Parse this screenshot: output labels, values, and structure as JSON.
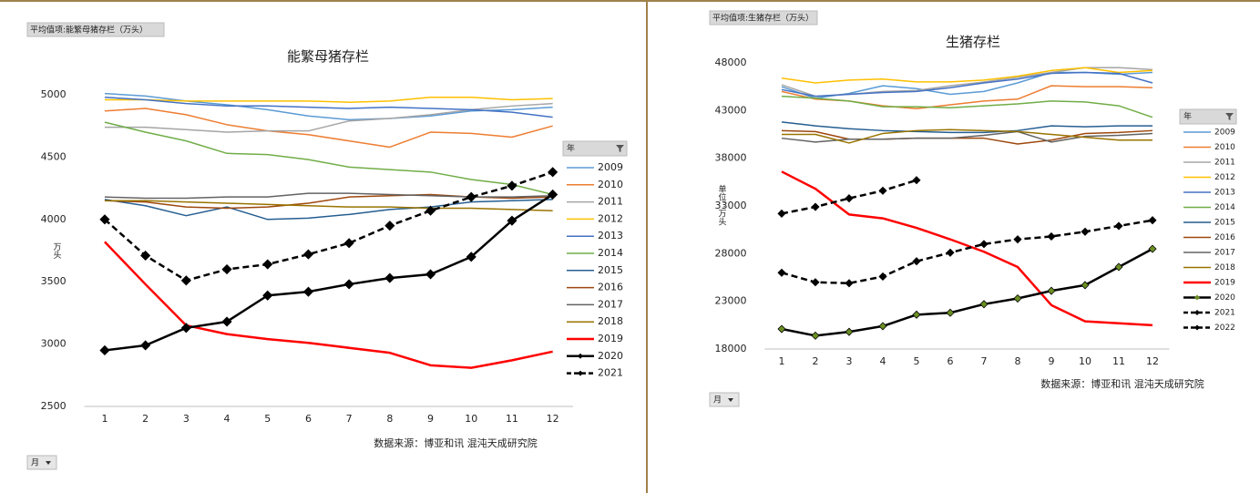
{
  "charts": [
    {
      "type": "line",
      "field_label": "平均值项:能繁母猪存栏（万头）",
      "title": "能繁母猪存栏",
      "y_label": "万头",
      "legend_title": "年",
      "source": "数据来源：博亚和讯 混沌天成研究院",
      "filter_label": "月",
      "categories": [
        "1",
        "2",
        "3",
        "4",
        "5",
        "6",
        "7",
        "8",
        "9",
        "10",
        "11",
        "12"
      ],
      "ylim": [
        2500,
        5000
      ],
      "yticks": [
        2500,
        3000,
        3500,
        4000,
        4500,
        5000
      ],
      "legend": "right",
      "series": [
        {
          "name": "2009",
          "color": "#5b9bd5",
          "values": [
            5010,
            4990,
            4950,
            4920,
            4880,
            4830,
            4800,
            4810,
            4830,
            4870,
            4880,
            4900
          ]
        },
        {
          "name": "2010",
          "color": "#ed7d31",
          "values": [
            4870,
            4890,
            4840,
            4760,
            4710,
            4680,
            4630,
            4580,
            4700,
            4690,
            4660,
            4750
          ]
        },
        {
          "name": "2011",
          "color": "#a5a5a5",
          "values": [
            4740,
            4740,
            4720,
            4700,
            4710,
            4710,
            4790,
            4810,
            4840,
            4880,
            4910,
            4930
          ]
        },
        {
          "name": "2012",
          "color": "#ffc000",
          "values": [
            4960,
            4960,
            4950,
            4950,
            4950,
            4950,
            4940,
            4950,
            4980,
            4980,
            4960,
            4970
          ]
        },
        {
          "name": "2013",
          "color": "#4472c4",
          "values": [
            4980,
            4960,
            4930,
            4910,
            4910,
            4900,
            4890,
            4900,
            4890,
            4880,
            4860,
            4820
          ]
        },
        {
          "name": "2014",
          "color": "#70ad47",
          "values": [
            4780,
            4700,
            4630,
            4530,
            4520,
            4480,
            4420,
            4400,
            4380,
            4320,
            4280,
            4200
          ]
        },
        {
          "name": "2015",
          "color": "#255e91",
          "values": [
            4160,
            4110,
            4030,
            4100,
            4000,
            4010,
            4040,
            4080,
            4100,
            4140,
            4150,
            4160
          ]
        },
        {
          "name": "2016",
          "color": "#9e480e",
          "values": [
            4150,
            4140,
            4100,
            4090,
            4100,
            4130,
            4180,
            4190,
            4200,
            4180,
            4170,
            4180
          ]
        },
        {
          "name": "2017",
          "color": "#636363",
          "values": [
            4180,
            4170,
            4170,
            4180,
            4180,
            4210,
            4210,
            4200,
            4190,
            4180,
            4180,
            4190
          ]
        },
        {
          "name": "2018",
          "color": "#997300",
          "values": [
            4150,
            4150,
            4140,
            4130,
            4120,
            4110,
            4100,
            4100,
            4090,
            4090,
            4080,
            4070
          ]
        },
        {
          "name": "2019",
          "color": "#ff0000",
          "width": 2.5,
          "values": [
            3820,
            3480,
            3150,
            3080,
            3040,
            3010,
            2970,
            2930,
            2830,
            2810,
            2870,
            2940
          ]
        },
        {
          "name": "2020",
          "color": "#000000",
          "width": 2.5,
          "marker": "diamond",
          "marker_color": "#000000",
          "values": [
            2950,
            2990,
            3130,
            3180,
            3390,
            3420,
            3480,
            3530,
            3560,
            3700,
            3990,
            4200
          ]
        },
        {
          "name": "2021",
          "color": "#000000",
          "width": 2.5,
          "dash": true,
          "marker": "diamond",
          "marker_color": "#000000",
          "values": [
            4000,
            3710,
            3510,
            3600,
            3640,
            3720,
            3810,
            3950,
            4070,
            4180,
            4270,
            4380
          ]
        }
      ]
    },
    {
      "type": "line",
      "field_label": "平均值项:生猪存栏（万头）",
      "title": "生猪存栏",
      "y_label": "单位：万头",
      "legend_title": "年",
      "source": "数据来源：博亚和讯 混沌天成研究院",
      "filter_label": "月",
      "categories": [
        "1",
        "2",
        "3",
        "4",
        "5",
        "6",
        "7",
        "8",
        "9",
        "10",
        "11",
        "12"
      ],
      "ylim": [
        18000,
        48000
      ],
      "yticks": [
        18000,
        23000,
        28000,
        33000,
        38000,
        43000,
        48000
      ],
      "legend": "right",
      "series": [
        {
          "name": "2009",
          "color": "#5b9bd5",
          "values": [
            45500,
            44300,
            44800,
            45600,
            45300,
            44700,
            45000,
            45900,
            47000,
            47000,
            46800,
            47000
          ]
        },
        {
          "name": "2010",
          "color": "#ed7d31",
          "values": [
            45000,
            44200,
            44000,
            43500,
            43200,
            43600,
            44000,
            44200,
            45600,
            45500,
            45500,
            45400
          ]
        },
        {
          "name": "2011",
          "color": "#a5a5a5",
          "values": [
            45700,
            44500,
            44700,
            45000,
            45100,
            45600,
            46000,
            46500,
            47000,
            47500,
            47500,
            47300
          ]
        },
        {
          "name": "2012",
          "color": "#ffc000",
          "values": [
            46400,
            45900,
            46200,
            46300,
            46000,
            46000,
            46200,
            46600,
            47200,
            47500,
            47000,
            47200
          ]
        },
        {
          "name": "2013",
          "color": "#4472c4",
          "values": [
            45200,
            44500,
            44700,
            44900,
            45000,
            45400,
            45900,
            46300,
            46900,
            47000,
            46900,
            45900
          ]
        },
        {
          "name": "2014",
          "color": "#70ad47",
          "values": [
            44500,
            44300,
            44000,
            43400,
            43400,
            43300,
            43500,
            43700,
            44000,
            43900,
            43500,
            42300
          ]
        },
        {
          "name": "2015",
          "color": "#255e91",
          "values": [
            41800,
            41400,
            41100,
            40900,
            40800,
            40700,
            40700,
            40900,
            41400,
            41300,
            41400,
            41400
          ]
        },
        {
          "name": "2016",
          "color": "#9e480e",
          "values": [
            40900,
            40800,
            40000,
            40000,
            40100,
            40100,
            40100,
            39500,
            39900,
            40600,
            40700,
            40900
          ]
        },
        {
          "name": "2017",
          "color": "#636363",
          "values": [
            40100,
            39700,
            40000,
            40000,
            40100,
            40100,
            40400,
            40800,
            39700,
            40300,
            40400,
            40600
          ]
        },
        {
          "name": "2018",
          "color": "#997300",
          "values": [
            40500,
            40500,
            39600,
            40600,
            40900,
            41000,
            40900,
            40800,
            40500,
            40200,
            39900,
            39900
          ]
        },
        {
          "name": "2019",
          "color": "#ff0000",
          "width": 2.5,
          "values": [
            36600,
            34800,
            32100,
            31700,
            30700,
            29500,
            28200,
            26600,
            22600,
            20900,
            20700,
            20500
          ]
        },
        {
          "name": "2020",
          "color": "#000000",
          "width": 2.5,
          "marker": "diamond",
          "marker_color": "#6b8e23",
          "values": [
            20100,
            19400,
            19800,
            20400,
            21600,
            21800,
            22700,
            23300,
            24100,
            24700,
            26600,
            28500
          ]
        },
        {
          "name": "2021",
          "color": "#000000",
          "width": 2.5,
          "dash": true,
          "marker": "diamond",
          "marker_color": "#000000",
          "values": [
            26000,
            25000,
            24900,
            25600,
            27200,
            28100,
            29000,
            29500,
            29800,
            30300,
            30900,
            31500
          ]
        },
        {
          "name": "2022",
          "color": "#000000",
          "width": 2.5,
          "dash": true,
          "marker": "diamond",
          "marker_color": "#000000",
          "values": [
            32200,
            32900,
            33800,
            34600,
            35700,
            null,
            null,
            null,
            null,
            null,
            null,
            null
          ]
        }
      ]
    }
  ]
}
